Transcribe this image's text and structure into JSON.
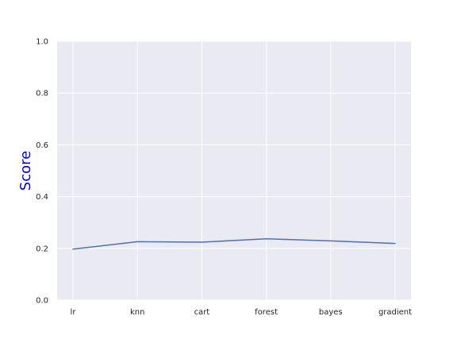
{
  "chart_data": {
    "type": "line",
    "categories": [
      "lr",
      "knn",
      "cart",
      "forest",
      "bayes",
      "gradient"
    ],
    "series": [
      {
        "values": [
          0.197,
          0.226,
          0.224,
          0.237,
          0.229,
          0.219
        ]
      }
    ],
    "title": "",
    "xlabel": "",
    "ylabel": "Score",
    "ylim": [
      0.0,
      1.0
    ],
    "yticks": [
      "0.0",
      "0.2",
      "0.4",
      "0.6",
      "0.8",
      "1.0"
    ],
    "grid": true,
    "legend": "none",
    "colors": {
      "plot_background": "#EAEAF2",
      "grid": "#FFFFFF",
      "line": "#4C72B0",
      "ylabel": "#0000FF",
      "tick_text": "#262626"
    }
  }
}
